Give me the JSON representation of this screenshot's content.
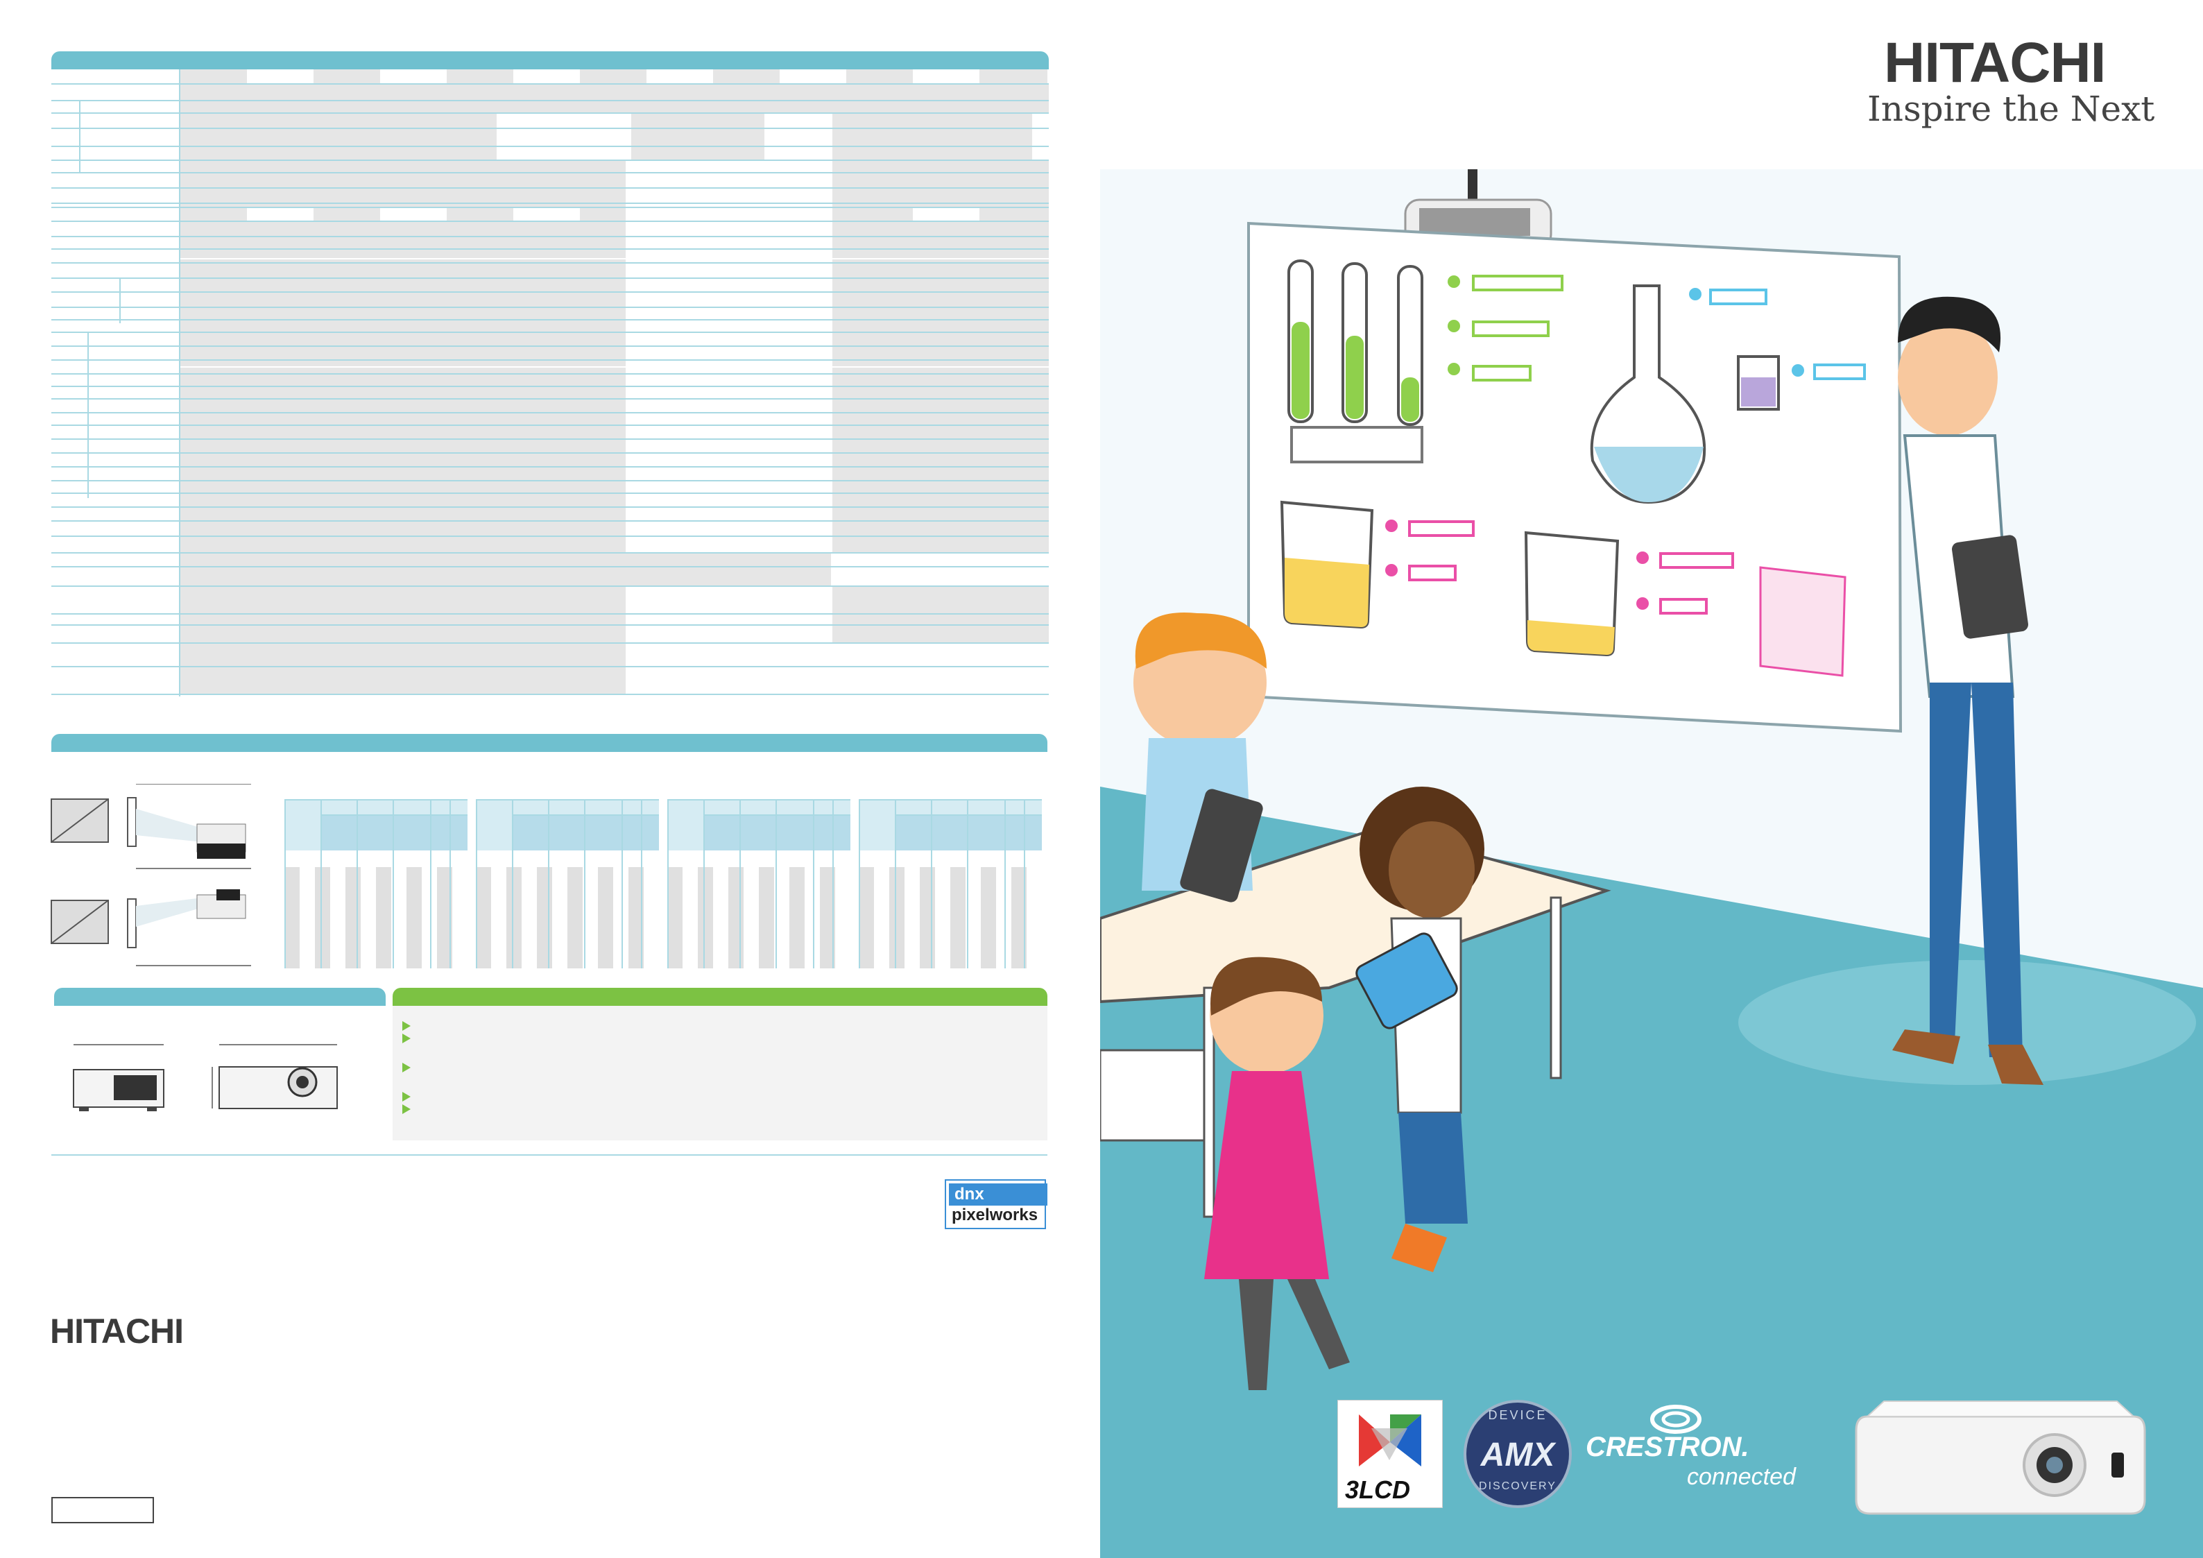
{
  "brand": {
    "name": "HITACHI",
    "tagline": "Inspire the Next"
  },
  "left_panel": {
    "footer_brand": "HITACHI"
  },
  "badges": {
    "pixelworks_top": "dnx",
    "pixelworks_bottom": "pixelworks"
  },
  "logos": {
    "lcd": "3LCD",
    "amx": "AMX",
    "amx_ring_top": "DEVICE",
    "amx_ring_bottom": "DISCOVERY",
    "crestron_top": "CRESTRON.",
    "crestron_bottom": "connected"
  },
  "colors": {
    "accent_teal": "#6fc0cf",
    "accent_green": "#7cc243",
    "grid_line": "#a9d9e3",
    "cell_gray": "#e6e6e6",
    "floor": "#63b8c7"
  }
}
